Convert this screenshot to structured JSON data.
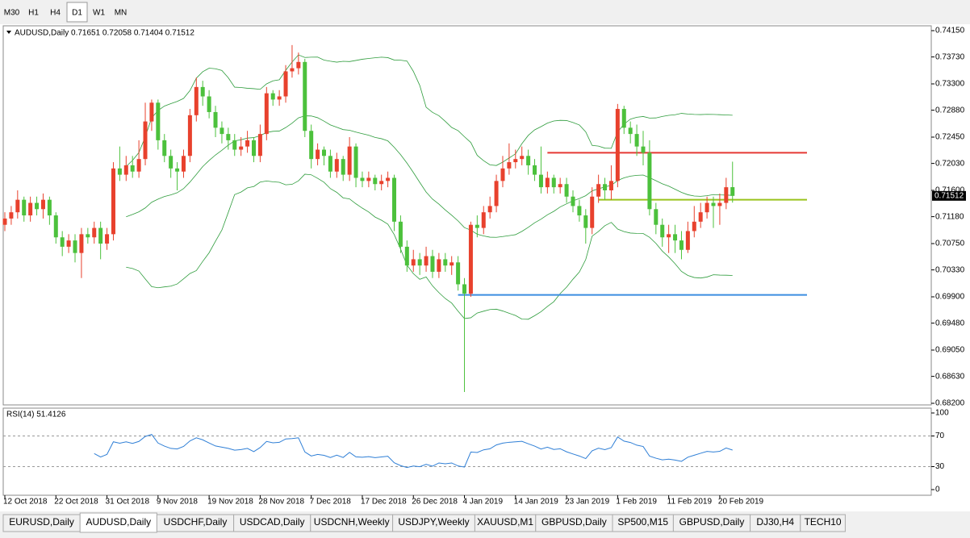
{
  "toolbar": {
    "timeframes": [
      "M30",
      "H1",
      "H4",
      "D1",
      "W1",
      "MN"
    ],
    "active": 3
  },
  "tabs": {
    "items": [
      "EURUSD,Daily",
      "AUDUSD,Daily",
      "USDCHF,Daily",
      "USDCAD,Daily",
      "USDCNH,Weekly",
      "USDJPY,Weekly",
      "XAUUSD,M1",
      "GBPUSD,Daily",
      "SP500,M15",
      "GBPUSD,Daily",
      "DJ30,H4",
      "TECH10"
    ],
    "active": 1
  },
  "chart_data": {
    "type": "candlestick",
    "title": "AUDUSD,Daily  0.71651 0.72058 0.71404 0.71512",
    "up_color": "#e8412d",
    "down_color": "#4cc13c",
    "band_color": "#2e9c3c",
    "ylim": [
      0.682,
      0.7415
    ],
    "yticks": [
      {
        "value": 0.7415,
        "label": "0.74150"
      },
      {
        "value": 0.7373,
        "label": "0.73730"
      },
      {
        "value": 0.733,
        "label": "0.73300"
      },
      {
        "value": 0.7288,
        "label": "0.72880"
      },
      {
        "value": 0.7245,
        "label": "0.72450"
      },
      {
        "value": 0.7203,
        "label": "0.72030"
      },
      {
        "value": 0.716,
        "label": "0.71600"
      },
      {
        "value": 0.7118,
        "label": "0.71180"
      },
      {
        "value": 0.7075,
        "label": "0.70750"
      },
      {
        "value": 0.7033,
        "label": "0.70330"
      },
      {
        "value": 0.699,
        "label": "0.69900"
      },
      {
        "value": 0.6948,
        "label": "0.69480"
      },
      {
        "value": 0.6905,
        "label": "0.69050"
      },
      {
        "value": 0.6863,
        "label": "0.68630"
      },
      {
        "value": 0.682,
        "label": "0.68200"
      }
    ],
    "current_price": {
      "value": 0.71512,
      "label": "0.71512"
    },
    "hlines": [
      {
        "value": 0.722,
        "from": 85,
        "color": "#e53935"
      },
      {
        "value": 0.7145,
        "from": 93,
        "color": "#9ac31c"
      },
      {
        "value": 0.6993,
        "from": 71,
        "color": "#3b8ee0"
      }
    ],
    "categories": [
      "12 Oct 2018",
      null,
      null,
      null,
      null,
      null,
      null,
      null,
      "22 Oct 2018",
      null,
      null,
      null,
      null,
      null,
      null,
      null,
      "31 Oct 2018",
      null,
      null,
      null,
      null,
      null,
      null,
      null,
      "9 Nov 2018",
      null,
      null,
      null,
      null,
      null,
      null,
      null,
      "19 Nov 2018",
      null,
      null,
      null,
      null,
      null,
      null,
      null,
      "28 Nov 2018",
      null,
      null,
      null,
      null,
      null,
      null,
      null,
      "7 Dec 2018",
      null,
      null,
      null,
      null,
      null,
      null,
      null,
      "17 Dec 2018",
      null,
      null,
      null,
      null,
      null,
      null,
      null,
      "26 Dec 2018",
      null,
      null,
      null,
      null,
      null,
      null,
      null,
      "4 Jan 2019",
      null,
      null,
      null,
      null,
      null,
      null,
      null,
      "14 Jan 2019",
      null,
      null,
      null,
      null,
      null,
      null,
      null,
      "23 Jan 2019",
      null,
      null,
      null,
      null,
      null,
      null,
      null,
      "1 Feb 2019",
      null,
      null,
      null,
      null,
      null,
      null,
      null,
      "11 Feb 2019",
      null,
      null,
      null,
      null,
      null,
      null,
      null,
      "20 Feb 2019",
      null,
      null
    ],
    "ohlc": [
      [
        0.7105,
        0.7125,
        0.7095,
        0.7115
      ],
      [
        0.7115,
        0.7135,
        0.7105,
        0.7125
      ],
      [
        0.7125,
        0.716,
        0.7115,
        0.7145
      ],
      [
        0.7145,
        0.715,
        0.711,
        0.712
      ],
      [
        0.712,
        0.715,
        0.711,
        0.714
      ],
      [
        0.714,
        0.715,
        0.712,
        0.713
      ],
      [
        0.713,
        0.7155,
        0.7115,
        0.7145
      ],
      [
        0.7145,
        0.715,
        0.7105,
        0.712
      ],
      [
        0.712,
        0.7125,
        0.7075,
        0.7085
      ],
      [
        0.7085,
        0.7095,
        0.7055,
        0.707
      ],
      [
        0.707,
        0.709,
        0.706,
        0.708
      ],
      [
        0.708,
        0.709,
        0.7045,
        0.706
      ],
      [
        0.706,
        0.71,
        0.702,
        0.709
      ],
      [
        0.709,
        0.71,
        0.7075,
        0.7085
      ],
      [
        0.7085,
        0.711,
        0.7075,
        0.71
      ],
      [
        0.71,
        0.711,
        0.705,
        0.7075
      ],
      [
        0.7075,
        0.71,
        0.7065,
        0.709
      ],
      [
        0.709,
        0.7205,
        0.708,
        0.7195
      ],
      [
        0.7195,
        0.723,
        0.7175,
        0.7185
      ],
      [
        0.7185,
        0.7215,
        0.7175,
        0.72
      ],
      [
        0.72,
        0.7215,
        0.718,
        0.719
      ],
      [
        0.719,
        0.724,
        0.718,
        0.721
      ],
      [
        0.721,
        0.73,
        0.72,
        0.727
      ],
      [
        0.727,
        0.7305,
        0.7255,
        0.73
      ],
      [
        0.73,
        0.7305,
        0.7225,
        0.724
      ],
      [
        0.724,
        0.725,
        0.7205,
        0.7215
      ],
      [
        0.7215,
        0.7225,
        0.718,
        0.7195
      ],
      [
        0.7195,
        0.7205,
        0.716,
        0.719
      ],
      [
        0.719,
        0.7225,
        0.718,
        0.7215
      ],
      [
        0.7215,
        0.729,
        0.7205,
        0.728
      ],
      [
        0.728,
        0.734,
        0.727,
        0.7325
      ],
      [
        0.7325,
        0.7335,
        0.7295,
        0.731
      ],
      [
        0.731,
        0.732,
        0.7275,
        0.7285
      ],
      [
        0.7285,
        0.7295,
        0.7245,
        0.726
      ],
      [
        0.726,
        0.727,
        0.7235,
        0.725
      ],
      [
        0.725,
        0.726,
        0.7225,
        0.724
      ],
      [
        0.724,
        0.725,
        0.7215,
        0.7225
      ],
      [
        0.7225,
        0.7245,
        0.7215,
        0.723
      ],
      [
        0.723,
        0.7255,
        0.722,
        0.724
      ],
      [
        0.724,
        0.7245,
        0.7205,
        0.7215
      ],
      [
        0.7215,
        0.7265,
        0.7205,
        0.725
      ],
      [
        0.725,
        0.7325,
        0.724,
        0.7315
      ],
      [
        0.7315,
        0.732,
        0.7295,
        0.7305
      ],
      [
        0.7305,
        0.732,
        0.7295,
        0.731
      ],
      [
        0.731,
        0.736,
        0.73,
        0.735
      ],
      [
        0.735,
        0.7392,
        0.734,
        0.7355
      ],
      [
        0.7355,
        0.738,
        0.7345,
        0.7365
      ],
      [
        0.7365,
        0.737,
        0.7245,
        0.7255
      ],
      [
        0.7255,
        0.7265,
        0.7195,
        0.721
      ],
      [
        0.721,
        0.7235,
        0.72,
        0.7225
      ],
      [
        0.7225,
        0.723,
        0.72,
        0.7215
      ],
      [
        0.7215,
        0.7225,
        0.718,
        0.719
      ],
      [
        0.719,
        0.722,
        0.718,
        0.721
      ],
      [
        0.721,
        0.7215,
        0.7175,
        0.7185
      ],
      [
        0.7185,
        0.7245,
        0.7175,
        0.723
      ],
      [
        0.723,
        0.7235,
        0.7165,
        0.718
      ],
      [
        0.718,
        0.719,
        0.7165,
        0.7175
      ],
      [
        0.7175,
        0.719,
        0.7165,
        0.718
      ],
      [
        0.718,
        0.7185,
        0.716,
        0.717
      ],
      [
        0.717,
        0.7185,
        0.716,
        0.7175
      ],
      [
        0.7175,
        0.719,
        0.7165,
        0.718
      ],
      [
        0.718,
        0.7185,
        0.7095,
        0.711
      ],
      [
        0.711,
        0.712,
        0.706,
        0.707
      ],
      [
        0.707,
        0.708,
        0.703,
        0.704
      ],
      [
        0.704,
        0.7065,
        0.703,
        0.705
      ],
      [
        0.705,
        0.706,
        0.7025,
        0.704
      ],
      [
        0.704,
        0.707,
        0.703,
        0.7055
      ],
      [
        0.7055,
        0.7065,
        0.702,
        0.703
      ],
      [
        0.703,
        0.706,
        0.702,
        0.705
      ],
      [
        0.705,
        0.706,
        0.703,
        0.704
      ],
      [
        0.704,
        0.7055,
        0.7025,
        0.7045
      ],
      [
        0.7045,
        0.7055,
        0.7,
        0.701
      ],
      [
        0.701,
        0.702,
        0.6838,
        0.6995
      ],
      [
        0.6995,
        0.711,
        0.699,
        0.7105
      ],
      [
        0.7105,
        0.712,
        0.7085,
        0.71
      ],
      [
        0.71,
        0.7135,
        0.709,
        0.7125
      ],
      [
        0.7125,
        0.715,
        0.7115,
        0.7135
      ],
      [
        0.7135,
        0.7185,
        0.7125,
        0.7175
      ],
      [
        0.7175,
        0.7215,
        0.7165,
        0.7195
      ],
      [
        0.7195,
        0.7235,
        0.7185,
        0.7205
      ],
      [
        0.7205,
        0.7225,
        0.7195,
        0.721
      ],
      [
        0.721,
        0.723,
        0.72,
        0.7215
      ],
      [
        0.7215,
        0.7225,
        0.7185,
        0.72
      ],
      [
        0.72,
        0.721,
        0.7175,
        0.7185
      ],
      [
        0.7185,
        0.723,
        0.7155,
        0.7165
      ],
      [
        0.7165,
        0.719,
        0.7155,
        0.718
      ],
      [
        0.718,
        0.7185,
        0.7155,
        0.7165
      ],
      [
        0.7165,
        0.718,
        0.7155,
        0.717
      ],
      [
        0.717,
        0.718,
        0.714,
        0.715
      ],
      [
        0.715,
        0.716,
        0.7125,
        0.7135
      ],
      [
        0.7135,
        0.7145,
        0.711,
        0.712
      ],
      [
        0.712,
        0.713,
        0.7075,
        0.71
      ],
      [
        0.71,
        0.7165,
        0.709,
        0.715
      ],
      [
        0.715,
        0.7185,
        0.714,
        0.717
      ],
      [
        0.717,
        0.718,
        0.7145,
        0.716
      ],
      [
        0.716,
        0.72,
        0.7145,
        0.7175
      ],
      [
        0.7175,
        0.7298,
        0.7165,
        0.729
      ],
      [
        0.729,
        0.7295,
        0.725,
        0.726
      ],
      [
        0.726,
        0.727,
        0.7235,
        0.725
      ],
      [
        0.725,
        0.7265,
        0.7215,
        0.723
      ],
      [
        0.723,
        0.7255,
        0.72,
        0.722
      ],
      [
        0.722,
        0.724,
        0.712,
        0.713
      ],
      [
        0.713,
        0.714,
        0.709,
        0.7105
      ],
      [
        0.7105,
        0.7115,
        0.707,
        0.7085
      ],
      [
        0.7085,
        0.7105,
        0.706,
        0.709
      ],
      [
        0.709,
        0.7105,
        0.706,
        0.708
      ],
      [
        0.708,
        0.7095,
        0.705,
        0.7065
      ],
      [
        0.7065,
        0.711,
        0.706,
        0.7095
      ],
      [
        0.7095,
        0.7135,
        0.7085,
        0.711
      ],
      [
        0.711,
        0.714,
        0.71,
        0.7125
      ],
      [
        0.7125,
        0.715,
        0.7115,
        0.714
      ],
      [
        0.714,
        0.715,
        0.71,
        0.7135
      ],
      [
        0.7135,
        0.7155,
        0.7105,
        0.714
      ],
      [
        0.714,
        0.718,
        0.713,
        0.7165
      ],
      [
        0.71651,
        0.72058,
        0.71404,
        0.71512
      ]
    ],
    "rsi": {
      "title": "RSI(14) 51.4126",
      "ylim": [
        0,
        100
      ],
      "yticks": [
        100,
        70,
        30,
        0
      ],
      "levels": [
        70,
        30
      ],
      "color": "#2f7fd6"
    }
  }
}
